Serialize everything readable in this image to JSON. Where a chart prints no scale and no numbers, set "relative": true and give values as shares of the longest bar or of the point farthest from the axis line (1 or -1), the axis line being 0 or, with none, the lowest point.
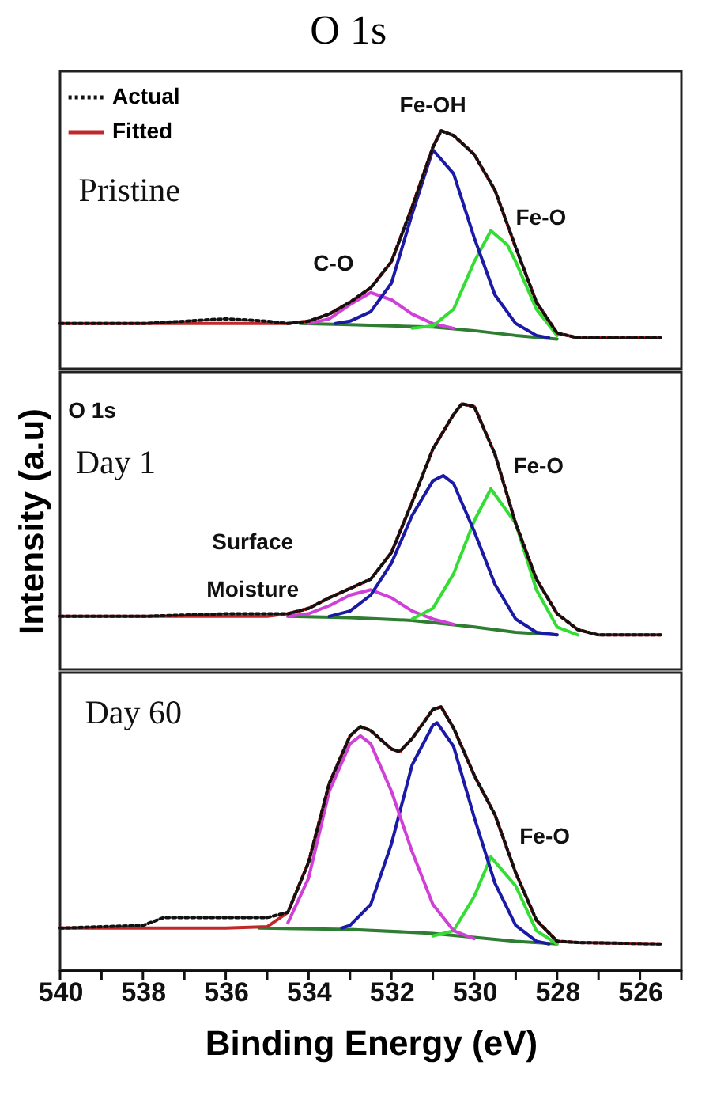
{
  "chart_data": [
    {
      "type": "line",
      "title": "O 1s",
      "relative": true,
      "legend": "top left",
      "tick_labels": false,
      "xlim": [
        540,
        525
      ],
      "annotations": [
        "Pristine",
        "Fe-OH",
        "Fe-O",
        "C-O"
      ],
      "series": [
        {
          "name": "Actual",
          "color": "#111111",
          "line_style": "dotted",
          "x": [
            540,
            538,
            537,
            536,
            535,
            534.5,
            534,
            533.5,
            533,
            532.5,
            532,
            531.5,
            531,
            530.8,
            530.5,
            530,
            529.5,
            529,
            528.5,
            528,
            527.5,
            526,
            525.5
          ],
          "values": [
            0.19,
            0.19,
            0.2,
            0.21,
            0.2,
            0.19,
            0.2,
            0.23,
            0.28,
            0.34,
            0.45,
            0.68,
            0.93,
            1.0,
            0.98,
            0.9,
            0.75,
            0.51,
            0.28,
            0.15,
            0.13,
            0.13,
            0.13
          ]
        },
        {
          "name": "Fitted",
          "color": "#c0282a",
          "line_style": "solid",
          "x": [
            540,
            536,
            535,
            534.5,
            534,
            533.5,
            533,
            532.5,
            532,
            531.5,
            531,
            530.8,
            530.5,
            530,
            529.5,
            529,
            528.5,
            528,
            527.5,
            526,
            525.5
          ],
          "values": [
            0.19,
            0.19,
            0.19,
            0.19,
            0.2,
            0.23,
            0.28,
            0.34,
            0.45,
            0.68,
            0.93,
            1.0,
            0.98,
            0.9,
            0.75,
            0.51,
            0.28,
            0.15,
            0.13,
            0.13,
            0.13
          ]
        },
        {
          "color": "#1a1aa6",
          "line_style": "solid",
          "x": [
            533.35,
            533,
            532.5,
            532,
            531.5,
            531,
            530.5,
            530,
            529.5,
            529,
            528.5,
            528.2
          ],
          "values": [
            0.19,
            0.2,
            0.24,
            0.36,
            0.65,
            0.92,
            0.82,
            0.55,
            0.31,
            0.19,
            0.14,
            0.13
          ]
        },
        {
          "color": "#33dd33",
          "line_style": "solid",
          "x": [
            531.5,
            531,
            530.5,
            530,
            529.6,
            529.2,
            529,
            528.5,
            528
          ],
          "values": [
            0.17,
            0.18,
            0.25,
            0.45,
            0.58,
            0.52,
            0.45,
            0.25,
            0.14
          ]
        },
        {
          "color": "#d040d8",
          "line_style": "solid",
          "x": [
            534,
            533.5,
            533,
            532.5,
            532,
            531.5,
            531,
            530.5
          ],
          "values": [
            0.19,
            0.21,
            0.27,
            0.32,
            0.29,
            0.23,
            0.19,
            0.17
          ]
        },
        {
          "color": "#2e7d32",
          "line_style": "solid",
          "x": [
            534.2,
            533,
            531,
            530,
            529,
            528
          ],
          "values": [
            0.19,
            0.185,
            0.175,
            0.16,
            0.14,
            0.125
          ]
        }
      ]
    },
    {
      "type": "line",
      "ylabel": "Intensity (a.u)",
      "relative": true,
      "tick_labels": false,
      "xlim": [
        540,
        525
      ],
      "annotations": [
        "O 1s",
        "Day 1",
        "Fe-O",
        "Surface\nMoisture"
      ],
      "series": [
        {
          "color": "#111111",
          "line_style": "dotted",
          "x": [
            540,
            538,
            536,
            535,
            534.5,
            534,
            533.5,
            532.5,
            532,
            531.5,
            531,
            530.5,
            530.3,
            530,
            529.5,
            529,
            528.5,
            528,
            527.5,
            527,
            525.5
          ],
          "values": [
            0.2,
            0.2,
            0.21,
            0.21,
            0.21,
            0.23,
            0.27,
            0.34,
            0.44,
            0.63,
            0.83,
            0.96,
            1.0,
            0.99,
            0.81,
            0.55,
            0.34,
            0.21,
            0.15,
            0.13,
            0.13
          ]
        },
        {
          "color": "#c0282a",
          "line_style": "solid",
          "x": [
            540,
            536,
            535,
            534.5,
            534,
            533.5,
            532.5,
            532,
            531.5,
            531,
            530.5,
            530.3,
            530,
            529.5,
            529,
            528.5,
            528,
            527.5,
            527,
            525.5
          ],
          "values": [
            0.2,
            0.2,
            0.2,
            0.21,
            0.23,
            0.27,
            0.34,
            0.44,
            0.63,
            0.83,
            0.96,
            1.0,
            0.99,
            0.81,
            0.55,
            0.34,
            0.21,
            0.15,
            0.13,
            0.13
          ]
        },
        {
          "color": "#1a1aa6",
          "line_style": "solid",
          "x": [
            533.5,
            533,
            532.5,
            532,
            531.5,
            531,
            530.75,
            530.5,
            530,
            529.5,
            529,
            528.5,
            528
          ],
          "values": [
            0.2,
            0.22,
            0.28,
            0.4,
            0.58,
            0.71,
            0.73,
            0.7,
            0.52,
            0.32,
            0.19,
            0.14,
            0.13
          ]
        },
        {
          "color": "#33dd33",
          "line_style": "solid",
          "x": [
            531.5,
            531,
            530.5,
            530,
            529.6,
            529,
            528.5,
            528,
            527.5
          ],
          "values": [
            0.19,
            0.23,
            0.36,
            0.56,
            0.68,
            0.55,
            0.3,
            0.16,
            0.13
          ]
        },
        {
          "color": "#d040d8",
          "line_style": "solid",
          "x": [
            534.5,
            534,
            533.5,
            533,
            532.5,
            532,
            531.5,
            531,
            530.5
          ],
          "values": [
            0.2,
            0.21,
            0.24,
            0.28,
            0.3,
            0.27,
            0.22,
            0.19,
            0.17
          ]
        },
        {
          "color": "#2e7d32",
          "line_style": "solid",
          "x": [
            534.5,
            533,
            531.5,
            530,
            529,
            528
          ],
          "values": [
            0.2,
            0.195,
            0.185,
            0.16,
            0.14,
            0.13
          ]
        }
      ]
    },
    {
      "type": "line",
      "xlabel": "Binding Energy (eV)",
      "relative": true,
      "tick_labels": "x",
      "xlim": [
        540,
        525
      ],
      "xticks": [
        540,
        {
          "value": 539,
          "label": null
        },
        538,
        {
          "value": 537,
          "label": null
        },
        536,
        {
          "value": 535,
          "label": null
        },
        534,
        {
          "value": 533,
          "label": null
        },
        532,
        {
          "value": 531,
          "label": null
        },
        530,
        {
          "value": 529,
          "label": null
        },
        528,
        {
          "value": 527,
          "label": null
        },
        526,
        {
          "value": 525,
          "label": null
        }
      ],
      "annotations": [
        "Day 60",
        "Fe-O"
      ],
      "series": [
        {
          "color": "#111111",
          "line_style": "dotted",
          "x": [
            540,
            538,
            537.5,
            536.5,
            535.5,
            535,
            534.5,
            534,
            533.5,
            533,
            532.75,
            532.5,
            532,
            531.8,
            531.5,
            531,
            530.8,
            530.5,
            530,
            529.5,
            529,
            528.5,
            528,
            527.5,
            525.5
          ],
          "values": [
            0.16,
            0.17,
            0.2,
            0.2,
            0.2,
            0.2,
            0.22,
            0.41,
            0.71,
            0.89,
            0.925,
            0.91,
            0.84,
            0.83,
            0.88,
            0.99,
            1.0,
            0.92,
            0.74,
            0.59,
            0.37,
            0.19,
            0.11,
            0.105,
            0.1
          ]
        },
        {
          "color": "#c0282a",
          "line_style": "solid",
          "x": [
            540,
            536,
            535,
            534.5,
            534,
            533.5,
            533,
            532.75,
            532.5,
            532,
            531.8,
            531.5,
            531,
            530.8,
            530.5,
            530,
            529.5,
            529,
            528.5,
            528,
            527.5,
            525.5
          ],
          "values": [
            0.16,
            0.16,
            0.165,
            0.22,
            0.41,
            0.71,
            0.89,
            0.925,
            0.91,
            0.84,
            0.83,
            0.88,
            0.99,
            1.0,
            0.92,
            0.74,
            0.59,
            0.37,
            0.19,
            0.11,
            0.105,
            0.1
          ]
        },
        {
          "color": "#d040d8",
          "line_style": "solid",
          "x": [
            534.5,
            534,
            533.5,
            533,
            532.75,
            532.5,
            532,
            531.5,
            531,
            530.5,
            530
          ],
          "values": [
            0.18,
            0.35,
            0.68,
            0.86,
            0.89,
            0.86,
            0.68,
            0.45,
            0.25,
            0.15,
            0.12
          ]
        },
        {
          "color": "#1a1aa6",
          "line_style": "solid",
          "x": [
            533.2,
            533,
            532.5,
            532,
            531.5,
            531,
            530.9,
            530.5,
            530,
            529.5,
            529,
            528.5,
            528.2
          ],
          "values": [
            0.16,
            0.17,
            0.25,
            0.48,
            0.78,
            0.93,
            0.94,
            0.85,
            0.58,
            0.33,
            0.17,
            0.11,
            0.1
          ]
        },
        {
          "color": "#33dd33",
          "line_style": "solid",
          "x": [
            531,
            530.5,
            530,
            529.6,
            529,
            528.5,
            528
          ],
          "values": [
            0.13,
            0.15,
            0.28,
            0.43,
            0.32,
            0.15,
            0.1
          ]
        },
        {
          "color": "#2e7d32",
          "line_style": "solid",
          "x": [
            535.2,
            533,
            531,
            530,
            529,
            528
          ],
          "values": [
            0.16,
            0.155,
            0.14,
            0.125,
            0.11,
            0.1
          ]
        }
      ]
    }
  ]
}
